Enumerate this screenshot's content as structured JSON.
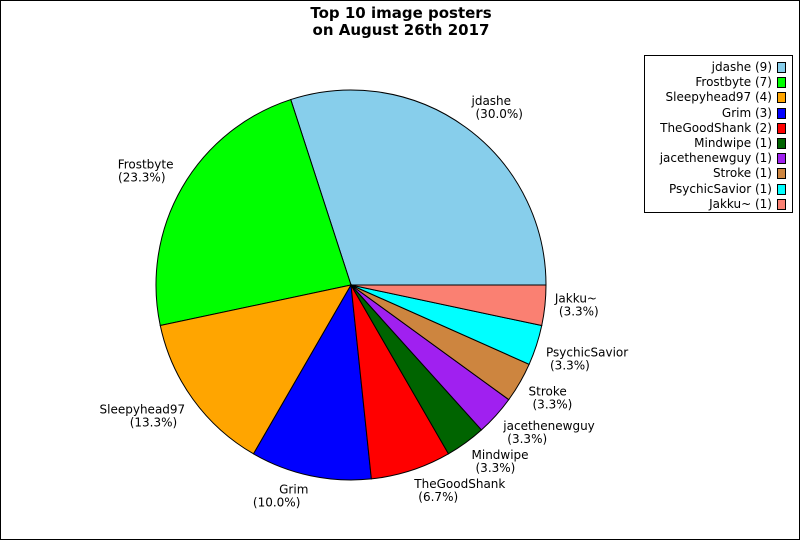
{
  "chart_data": {
    "type": "pie",
    "title_lines": [
      "Top 10 image posters",
      "on August 26th 2017"
    ],
    "legend_position": "top-right",
    "slices": [
      {
        "label": "jdashe",
        "count": 9,
        "percent": "30.0%",
        "legend": "jdashe (9)",
        "color": "#87ceeb"
      },
      {
        "label": "Frostbyte",
        "count": 7,
        "percent": "23.3%",
        "legend": "Frostbyte (7)",
        "color": "#00ff00"
      },
      {
        "label": "Sleepyhead97",
        "count": 4,
        "percent": "13.3%",
        "legend": "Sleepyhead97 (4)",
        "color": "#ffa500"
      },
      {
        "label": "Grim",
        "count": 3,
        "percent": "10.0%",
        "legend": "Grim (3)",
        "color": "#0000ff"
      },
      {
        "label": "TheGoodShank",
        "count": 2,
        "percent": "6.7%",
        "legend": "TheGoodShank (2)",
        "color": "#ff0000"
      },
      {
        "label": "Mindwipe",
        "count": 1,
        "percent": "3.3%",
        "legend": "Mindwipe (1)",
        "color": "#006400"
      },
      {
        "label": "jacethenewguy",
        "count": 1,
        "percent": "3.3%",
        "legend": "jacethenewguy (1)",
        "color": "#a020f0"
      },
      {
        "label": "Stroke",
        "count": 1,
        "percent": "3.3%",
        "legend": "Stroke (1)",
        "color": "#cd853f"
      },
      {
        "label": "PsychicSavior",
        "count": 1,
        "percent": "3.3%",
        "legend": "PsychicSavior (1)",
        "color": "#00ffff"
      },
      {
        "label": "Jakku~",
        "count": 1,
        "percent": "3.3%",
        "legend": "Jakku~ (1)",
        "color": "#fa8072"
      }
    ]
  }
}
